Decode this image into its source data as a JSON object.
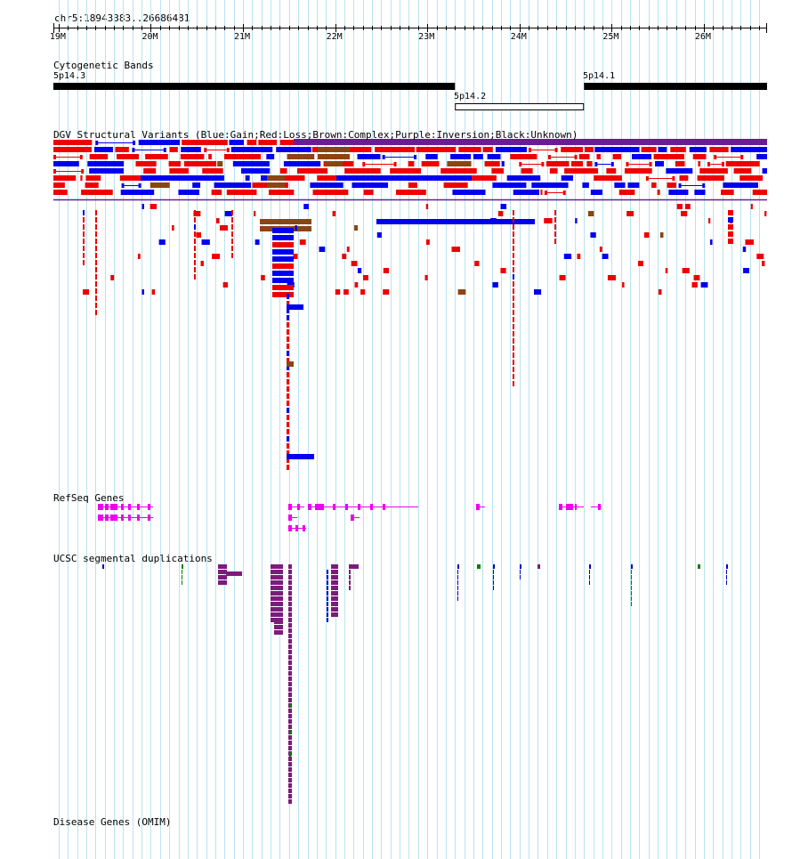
{
  "browser": {
    "position_label": "chr5:18943383..26686481",
    "ruler": {
      "start_mb": 18.943383,
      "end_mb": 26.686481,
      "ticks": [
        "19M",
        "20M",
        "21M",
        "22M",
        "23M",
        "24M",
        "25M",
        "26M"
      ]
    },
    "tracks": {
      "cytobands": {
        "title": "Cytogenetic Bands",
        "bands": [
          {
            "name": "5p14.3",
            "start_mb": 18.943,
            "end_mb": 23.3,
            "stain": "gpos"
          },
          {
            "name": "5p14.2",
            "start_mb": 23.3,
            "end_mb": 24.7,
            "stain": "gneg"
          },
          {
            "name": "5p14.1",
            "start_mb": 24.7,
            "end_mb": 26.686,
            "stain": "gpos"
          }
        ]
      },
      "dgv": {
        "title": "DGV Structural Variants (Blue:Gain;Red:Loss;Brown:Complex;Purple:Inversion;Black:Unknown)",
        "colors": {
          "gain": "#0000ee",
          "loss": "#ee0000",
          "complex": "#8b4513",
          "inversion": "#6a1b9a",
          "unknown": "#000000"
        }
      },
      "refseq": {
        "title": "RefSeq Genes",
        "color": "#ee00ee"
      },
      "segdups": {
        "title": "UCSC segmental duplications",
        "colors": {
          "high": "#7b1c7b",
          "mid": "#0000cc",
          "low": "#008000"
        }
      },
      "omim": {
        "title": "Disease Genes (OMIM)"
      }
    }
  }
}
